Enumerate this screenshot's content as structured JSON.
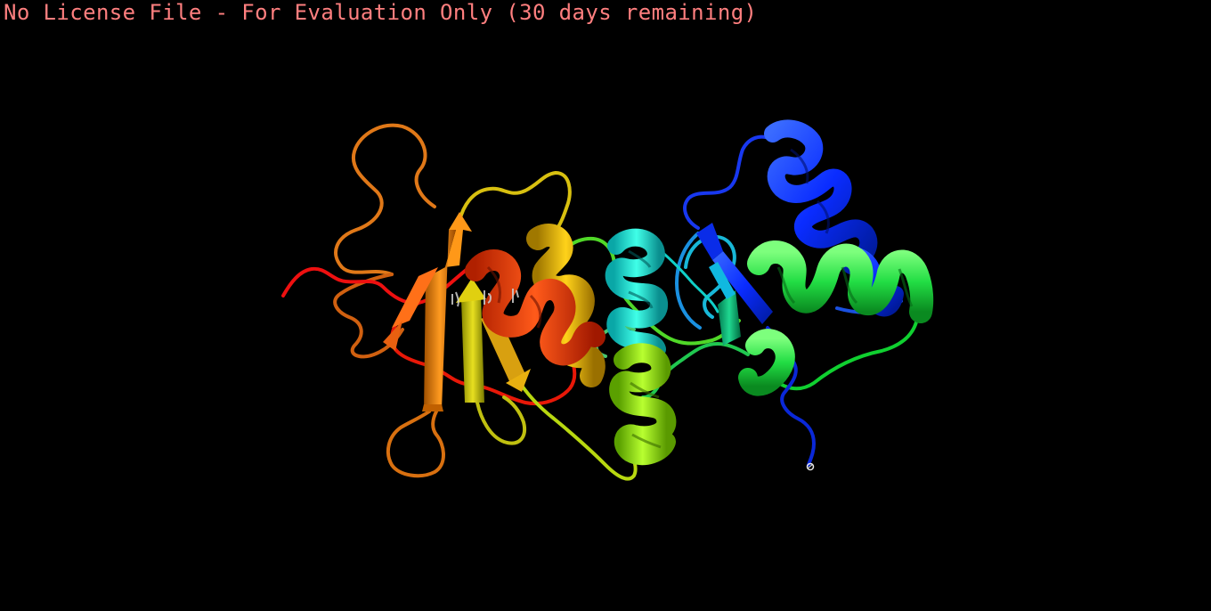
{
  "viewer": {
    "license_banner": "No License File - For Evaluation Only (30 days remaining)",
    "background_color": "#000000",
    "banner_color": "#ff7f7f"
  },
  "structure": {
    "representation": "cartoon",
    "color_scheme": "rainbow",
    "spectrum": [
      "#0000ff",
      "#0088ff",
      "#00e0e0",
      "#00d080",
      "#00ff00",
      "#90ee00",
      "#e0e000",
      "#ffc000",
      "#ff8000",
      "#ff4000",
      "#ff0000"
    ],
    "terminus_marker_icon": "atom-marker-icon"
  }
}
